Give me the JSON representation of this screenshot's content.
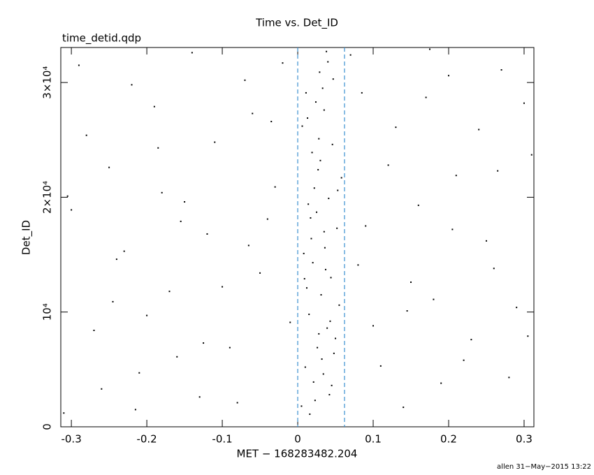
{
  "chart_data": {
    "type": "scatter",
    "title": "Time vs. Det_ID",
    "subtitle": "time_detid.qdp",
    "x_label": "MET − 168283482.204",
    "y_label": "Det_ID",
    "footer": "allen 31−May−2015 13:22",
    "color": "#000000",
    "vline_color": "#3a8fd0",
    "vlines": [
      0,
      0.062
    ],
    "xlim": [
      -0.314,
      0.313
    ],
    "ylim": [
      0,
      33050
    ],
    "xticks": [
      -0.3,
      -0.2,
      -0.1,
      0,
      0.1,
      0.2,
      0.3
    ],
    "yticks": [
      0,
      {
        "value": 10000,
        "label": "10⁴"
      },
      {
        "value": 20000,
        "label": "2×10⁴"
      },
      {
        "value": 30000,
        "label": "3×10⁴"
      }
    ],
    "x": [
      -0.31,
      -0.29,
      -0.27,
      -0.25,
      -0.23,
      -0.21,
      -0.19,
      -0.17,
      -0.15,
      -0.13,
      -0.11,
      -0.09,
      -0.07,
      -0.05,
      -0.03,
      -0.01,
      0.07,
      0.09,
      0.11,
      0.13,
      0.15,
      0.17,
      0.19,
      0.21,
      0.23,
      0.25,
      0.27,
      0.29,
      0.31,
      -0.3,
      -0.28,
      -0.26,
      -0.24,
      -0.22,
      -0.2,
      -0.18,
      -0.16,
      -0.14,
      -0.12,
      -0.1,
      -0.08,
      -0.06,
      -0.04,
      -0.02,
      0.08,
      0.1,
      0.12,
      0.14,
      0.16,
      0.18,
      0.2,
      0.22,
      0.24,
      0.26,
      0.28,
      0.3,
      -0.305,
      -0.245,
      -0.185,
      -0.125,
      -0.065,
      0.085,
      0.145,
      0.205,
      0.265,
      0.305,
      -0.215,
      -0.155,
      -0.035,
      0.175,
      0.005,
      0.01,
      0.015,
      0.02,
      0.025,
      0.03,
      0.035,
      0.04,
      0.045,
      0.05,
      0.012,
      0.018,
      0.022,
      0.028,
      0.033,
      0.038,
      0.042,
      0.048,
      0.055,
      0.008,
      0.014,
      0.019,
      0.024,
      0.029,
      0.034,
      0.039,
      0.044,
      0.052,
      0.058,
      0.006,
      0.016,
      0.021,
      0.026,
      0.031,
      0.036,
      0.041,
      0.046,
      0.011,
      0.027,
      0.037,
      0.023,
      0.032,
      0.043,
      0.017,
      0.013,
      0.047,
      0.053,
      0.009,
      0.028,
      0.035
    ],
    "values": [
      1200,
      31500,
      8400,
      22600,
      15300,
      4700,
      27900,
      11800,
      19600,
      2600,
      24800,
      6900,
      30200,
      13400,
      20900,
      9100,
      32400,
      17500,
      5300,
      26100,
      12600,
      28700,
      3800,
      21900,
      7600,
      16200,
      31100,
      10400,
      23700,
      18900,
      25400,
      3300,
      14600,
      29800,
      9700,
      20400,
      6100,
      32600,
      16800,
      12200,
      2100,
      27300,
      18100,
      31700,
      14100,
      8800,
      22800,
      1700,
      19300,
      11100,
      30600,
      5800,
      25900,
      13800,
      4300,
      28200,
      20100,
      10900,
      24300,
      7300,
      15800,
      29100,
      10100,
      17200,
      22300,
      7900,
      1500,
      17900,
      26600,
      32900,
      1800,
      5200,
      9800,
      14300,
      18700,
      23200,
      27600,
      31800,
      3600,
      7700,
      12100,
      16400,
      20800,
      25100,
      29500,
      32700,
      2800,
      6400,
      10600,
      15100,
      19400,
      23900,
      28300,
      30900,
      4600,
      8600,
      13000,
      17300,
      21700,
      26200,
      1100,
      3900,
      6900,
      11500,
      15600,
      19900,
      24600,
      29100,
      22400,
      13700,
      2300,
      5900,
      9200,
      18200,
      26900,
      30300,
      20600,
      12900,
      8100,
      17000
    ]
  }
}
